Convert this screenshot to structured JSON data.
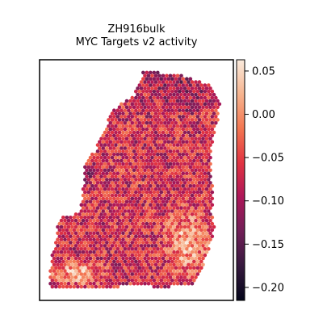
{
  "chart_data": {
    "type": "scatter",
    "title_line1": "ZH916bulk",
    "title_line2": "MYC Targets v2 activity",
    "colormap": [
      "#03051a",
      "#36193e",
      "#701f57",
      "#ad1759",
      "#e13342",
      "#f37651",
      "#f6b48f",
      "#faebdd"
    ],
    "colorbar": {
      "vmin": -0.215,
      "vmax": 0.063,
      "ticks": [
        0.05,
        0.0,
        -0.05,
        -0.1,
        -0.15,
        -0.2
      ],
      "tick_labels": [
        "0.05",
        "0.00",
        "−0.05",
        "−0.10",
        "−0.15",
        "−0.20"
      ]
    },
    "spots": {
      "description_units": "spatial coordinates with activity value mapped to colormap",
      "regions": [
        {
          "name": "lower-left-light",
          "mean": 0.03
        },
        {
          "name": "lower-right-light",
          "mean": 0.035
        },
        {
          "name": "central-mixed",
          "mean": -0.07
        },
        {
          "name": "upper-dark",
          "mean": -0.12
        },
        {
          "name": "left-edge-dark",
          "mean": -0.15
        }
      ]
    },
    "grid": false,
    "legend": "colorbar-right"
  }
}
